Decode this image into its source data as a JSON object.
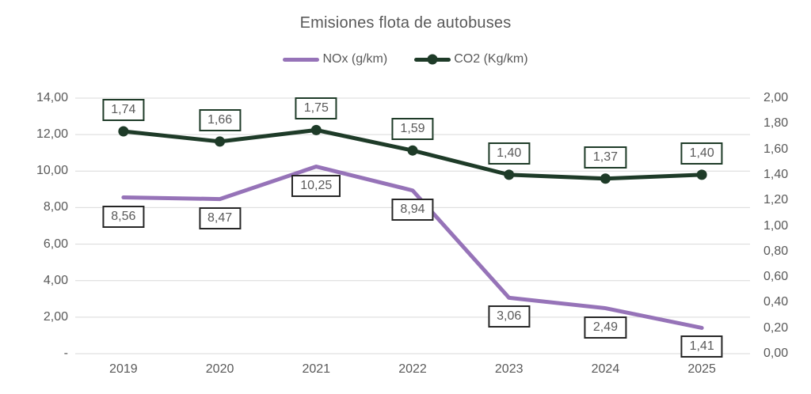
{
  "chart_data": {
    "type": "line",
    "title": "Emisiones flota de autobuses",
    "legend_position": "top",
    "grid": "horizontal",
    "background_color": "#ffffff",
    "text_color": "#595959",
    "gridline_color": "#d9d9d9",
    "categories": [
      "2019",
      "2020",
      "2021",
      "2022",
      "2023",
      "2024",
      "2025"
    ],
    "series": [
      {
        "name": "NOx (g/km)",
        "axis": "left",
        "color": "#9673b8",
        "markers": false,
        "values": [
          8.56,
          8.47,
          10.25,
          8.94,
          3.06,
          2.49,
          1.41
        ],
        "labels": [
          "8,56",
          "8,47",
          "10,25",
          "8,94",
          "3,06",
          "2,49",
          "1,41"
        ],
        "label_position": "below",
        "label_border_color": "#262626"
      },
      {
        "name": "CO2 (Kg/km)",
        "axis": "right",
        "color": "#1e3b28",
        "markers": true,
        "values": [
          1.74,
          1.66,
          1.75,
          1.59,
          1.4,
          1.37,
          1.4
        ],
        "labels": [
          "1,74",
          "1,66",
          "1,75",
          "1,59",
          "1,40",
          "1,37",
          "1,40"
        ],
        "label_position": "above",
        "label_border_color": "#1e3b28"
      }
    ],
    "left_axis": {
      "min": 0,
      "max": 14,
      "tick_values": [
        14,
        12,
        10,
        8,
        6,
        4,
        2,
        0
      ],
      "tick_labels": [
        "14,00",
        "12,00",
        "10,00",
        "8,00",
        "6,00",
        "4,00",
        "2,00",
        "-"
      ]
    },
    "right_axis": {
      "min": 0,
      "max": 2,
      "tick_values": [
        2,
        1.8,
        1.6,
        1.4,
        1.2,
        1.0,
        0.8,
        0.6,
        0.4,
        0.2,
        0
      ],
      "tick_labels": [
        "2,00",
        "1,80",
        "1,60",
        "1,40",
        "1,20",
        "1,00",
        "0,80",
        "0,60",
        "0,40",
        "0,20",
        "0,00"
      ]
    }
  }
}
